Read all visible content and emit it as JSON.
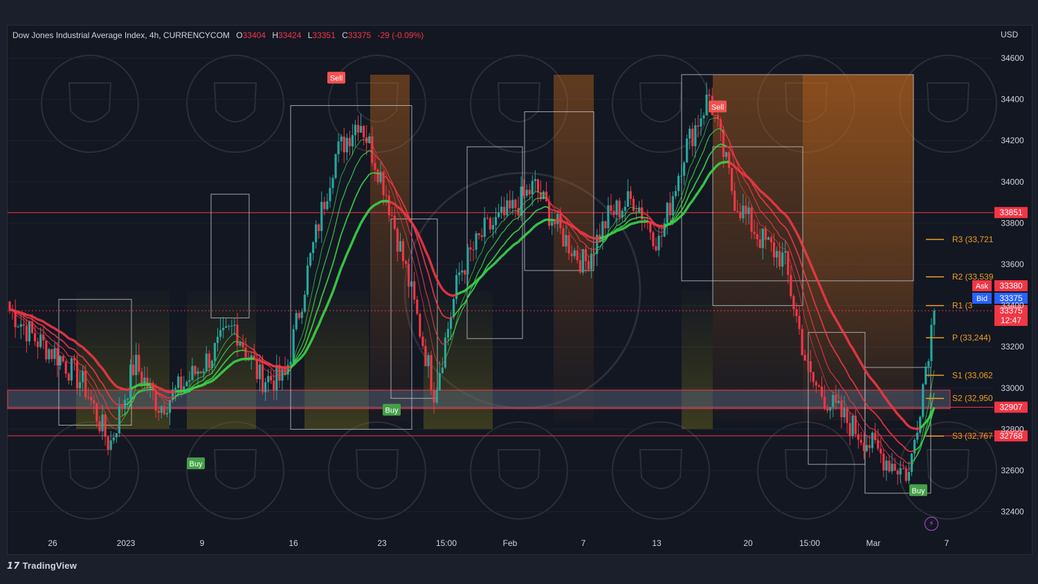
{
  "header": {
    "symbol": "Dow Jones Industrial Average Index, 4h, CURRENCYCOM",
    "o_label": "O",
    "o_value": "33404",
    "h_label": "H",
    "h_value": "33424",
    "l_label": "L",
    "l_value": "33351",
    "c_label": "C",
    "c_value": "33375",
    "change": "-29 (-0.09%)",
    "currency": "USD"
  },
  "branding": {
    "logo_text": "TradingView"
  },
  "quote": {
    "ask_label": "Ask",
    "ask_value": "33380",
    "bid_label": "Bid",
    "bid_value": "33375",
    "last_value": "33375",
    "countdown": "12:47"
  },
  "colors": {
    "background": "#131722",
    "up": "#26a69a",
    "down": "#f23645",
    "ema_green": "#3ad64a",
    "ema_red": "#f23645",
    "pivot": "#f0a020",
    "zone_orange": "#b8631c",
    "zone_olive": "#6e6a1a"
  },
  "chart_data": {
    "type": "candlestick",
    "title": "Dow Jones Industrial Average Index, 4h, CURRENCYCOM",
    "ylim": [
      32350,
      34720
    ],
    "y_ticks": [
      34600,
      34400,
      34200,
      34000,
      33800,
      33600,
      33400,
      33200,
      33000,
      32800,
      32600,
      32400
    ],
    "x_ticks": [
      "26",
      "2023",
      "9",
      "16",
      "23",
      "15:00",
      "Feb",
      "7",
      "13",
      "20",
      "15:00",
      "Mar",
      "7"
    ],
    "anchor_closes": [
      33380,
      33240,
      33150,
      33010,
      32720,
      33120,
      32910,
      33020,
      33150,
      33300,
      33050,
      33040,
      33610,
      34120,
      34310,
      33980,
      33500,
      32980,
      33560,
      33760,
      33850,
      33980,
      33760,
      33600,
      33840,
      33920,
      33700,
      34150,
      34420,
      33920,
      33730,
      33620,
      33050,
      32900,
      32780,
      32660,
      32580,
      33380
    ],
    "horizontal_levels": [
      {
        "value": 33851,
        "label": "33851"
      },
      {
        "value": 32907,
        "label": "32907"
      },
      {
        "value": 32768,
        "label": "32768"
      }
    ],
    "support_zone": [
      32900,
      32990
    ],
    "pivot_levels": [
      {
        "name": "R3",
        "value": 33721,
        "label": "R3 (33,721"
      },
      {
        "name": "R2",
        "value": 33539,
        "label": "R2 (33,539"
      },
      {
        "name": "R1",
        "value": 33400,
        "label": "R1 (3"
      },
      {
        "name": "P",
        "value": 33244,
        "label": "P (33,244)"
      },
      {
        "name": "S1",
        "value": 33062,
        "label": "S1 (33,062"
      },
      {
        "name": "S2",
        "value": 32950,
        "label": "S2 (32,950"
      },
      {
        "name": "S3",
        "value": 32767,
        "label": "S3 (32,767"
      }
    ],
    "signals": [
      {
        "type": "Buy",
        "label": "Buy",
        "price": 32680
      },
      {
        "type": "Sell",
        "label": "Sell",
        "price": 34450
      },
      {
        "type": "Buy",
        "label": "Buy",
        "price": 32940
      },
      {
        "type": "Sell",
        "label": "Sell",
        "price": 34310
      },
      {
        "type": "Buy",
        "label": "Buy",
        "price": 32550
      }
    ],
    "box_levels": [
      {
        "top": 33430,
        "bottom": 32820
      },
      {
        "top": 33940,
        "bottom": 33340
      },
      {
        "top": 34370,
        "bottom": 32800
      },
      {
        "top": 33820,
        "bottom": 32950
      },
      {
        "top": 34170,
        "bottom": 33240
      },
      {
        "top": 34340,
        "bottom": 33570
      },
      {
        "top": 34520,
        "bottom": 33520
      },
      {
        "top": 34170,
        "bottom": 33400
      },
      {
        "top": 33270,
        "bottom": 32630
      },
      {
        "top": 33100,
        "bottom": 32490
      }
    ]
  }
}
